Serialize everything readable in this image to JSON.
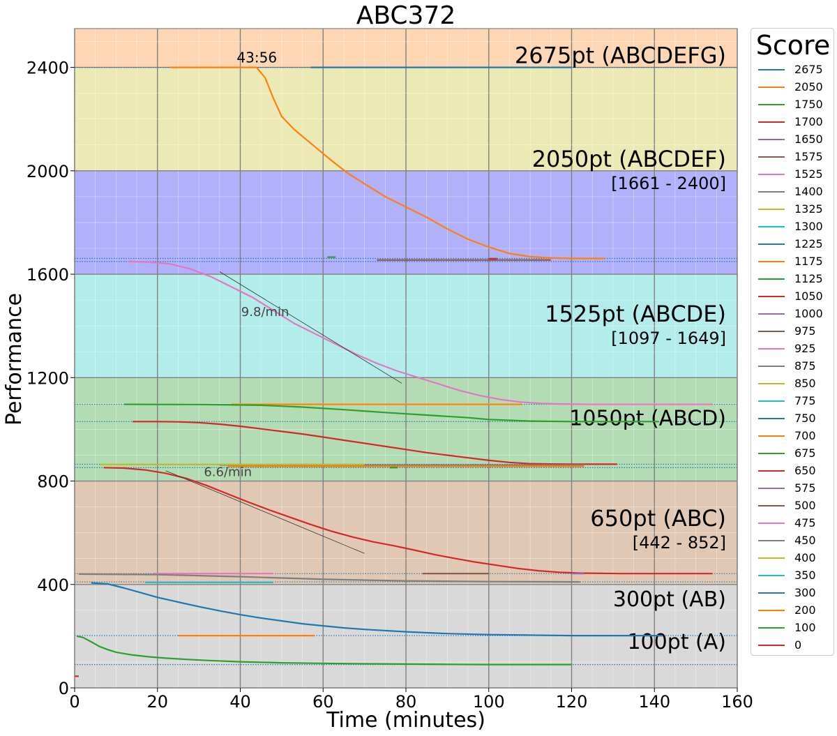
{
  "chart_data": {
    "type": "line",
    "title": "ABC372",
    "xlabel": "Time (minutes)",
    "ylabel": "Performance",
    "xlim": [
      0,
      160
    ],
    "ylim": [
      0,
      2550
    ],
    "x_ticks": [
      "0",
      "20",
      "40",
      "60",
      "80",
      "100",
      "120",
      "140",
      "160"
    ],
    "y_ticks": [
      "0",
      "400",
      "800",
      "1200",
      "1600",
      "2000",
      "2400"
    ],
    "grid": true,
    "legend_position": "right",
    "legend_title": "Score",
    "legend": [
      {
        "label": "2675",
        "color": "#1f77b4"
      },
      {
        "label": "2050",
        "color": "#ff7f0e"
      },
      {
        "label": "1750",
        "color": "#2ca02c"
      },
      {
        "label": "1700",
        "color": "#d62728"
      },
      {
        "label": "1650",
        "color": "#9467bd"
      },
      {
        "label": "1575",
        "color": "#8c564b"
      },
      {
        "label": "1525",
        "color": "#e377c2"
      },
      {
        "label": "1400",
        "color": "#7f7f7f"
      },
      {
        "label": "1325",
        "color": "#bcbd22"
      },
      {
        "label": "1300",
        "color": "#17becf"
      },
      {
        "label": "1225",
        "color": "#1f77b4"
      },
      {
        "label": "1175",
        "color": "#ff7f0e"
      },
      {
        "label": "1125",
        "color": "#2ca02c"
      },
      {
        "label": "1050",
        "color": "#d62728"
      },
      {
        "label": "1000",
        "color": "#9467bd"
      },
      {
        "label": "975",
        "color": "#8c564b"
      },
      {
        "label": "925",
        "color": "#e377c2"
      },
      {
        "label": "875",
        "color": "#7f7f7f"
      },
      {
        "label": "850",
        "color": "#bcbd22"
      },
      {
        "label": "775",
        "color": "#17becf"
      },
      {
        "label": "750",
        "color": "#1f77b4"
      },
      {
        "label": "700",
        "color": "#ff7f0e"
      },
      {
        "label": "675",
        "color": "#2ca02c"
      },
      {
        "label": "650",
        "color": "#d62728"
      },
      {
        "label": "575",
        "color": "#9467bd"
      },
      {
        "label": "500",
        "color": "#8c564b"
      },
      {
        "label": "475",
        "color": "#e377c2"
      },
      {
        "label": "450",
        "color": "#7f7f7f"
      },
      {
        "label": "400",
        "color": "#bcbd22"
      },
      {
        "label": "350",
        "color": "#17becf"
      },
      {
        "label": "300",
        "color": "#1f77b4"
      },
      {
        "label": "200",
        "color": "#ff7f0e"
      },
      {
        "label": "100",
        "color": "#2ca02c"
      },
      {
        "label": "0",
        "color": "#d62728"
      }
    ],
    "bands": [
      {
        "y0": 0,
        "y1": 400,
        "color": "#d9d9d9"
      },
      {
        "y0": 400,
        "y1": 800,
        "color": "#e0c8b4"
      },
      {
        "y0": 800,
        "y1": 1200,
        "color": "#b4dcb4"
      },
      {
        "y0": 1200,
        "y1": 1600,
        "color": "#b2eceb"
      },
      {
        "y0": 1600,
        "y1": 2000,
        "color": "#b0b0fb"
      },
      {
        "y0": 2000,
        "y1": 2400,
        "color": "#eceab4"
      },
      {
        "y0": 2400,
        "y1": 2550,
        "color": "#fdd7b4"
      }
    ],
    "band_labels": [
      {
        "name": "2675pt (ABCDEFG)",
        "range": "",
        "y": 2400
      },
      {
        "name": "2050pt (ABCDEF)",
        "range": "[1661 - 2400]",
        "y": 2000
      },
      {
        "name": "1525pt (ABCDE)",
        "range": "[1097 - 1649]",
        "y": 1400
      },
      {
        "name": "1050pt (ABCD)",
        "range": "",
        "y": 1000
      },
      {
        "name": "650pt (ABC)",
        "range": "[442 - 852]",
        "y": 610
      },
      {
        "name": "300pt (AB)",
        "range": "",
        "y": 300
      },
      {
        "name": "100pt (A)",
        "range": "",
        "y": 135
      }
    ],
    "dotted_levels": [
      2400,
      1661,
      1649,
      1097,
      1030,
      865,
      852,
      442,
      410,
      202,
      90
    ],
    "annotations": [
      {
        "text": "43:56",
        "x": 44,
        "y": 2400
      },
      {
        "text": "9.8/min",
        "x": 46,
        "y": 1420
      },
      {
        "text": "6.6/min",
        "x": 37,
        "y": 800
      }
    ],
    "slope_lines": [
      {
        "x": [
          35,
          79
        ],
        "y": [
          1610,
          1178
        ]
      },
      {
        "x": [
          22,
          70
        ],
        "y": [
          840,
          520
        ]
      }
    ],
    "series": [
      {
        "name": "2675",
        "color": "#1f77b4",
        "x": [
          57,
          120
        ],
        "y": [
          2400,
          2400
        ]
      },
      {
        "name": "2050",
        "color": "#ff7f0e",
        "x": [
          23,
          43.9,
          46,
          48,
          50,
          53,
          56,
          59,
          62,
          66,
          70,
          75,
          80,
          85,
          90,
          95,
          100,
          105,
          110,
          115,
          120,
          128
        ],
        "y": [
          2400,
          2400,
          2360,
          2280,
          2210,
          2160,
          2120,
          2080,
          2040,
          1990,
          1950,
          1900,
          1860,
          1820,
          1775,
          1735,
          1705,
          1680,
          1668,
          1663,
          1661,
          1661
        ]
      },
      {
        "name": "1750",
        "color": "#2ca02c",
        "x": [
          61,
          63
        ],
        "y": [
          1666,
          1666
        ]
      },
      {
        "name": "1700",
        "color": "#d62728",
        "x": [
          100,
          102
        ],
        "y": [
          1660,
          1660
        ]
      },
      {
        "name": "1575",
        "color": "#8c564b",
        "x": [
          73,
          115
        ],
        "y": [
          1655,
          1655
        ]
      },
      {
        "name": "1525",
        "color": "#e377c2",
        "x": [
          13,
          18,
          23,
          28,
          33,
          38,
          43,
          48,
          53,
          58,
          63,
          68,
          73,
          78,
          83,
          88,
          93,
          98,
          103,
          108,
          113,
          118,
          125,
          135,
          145,
          154
        ],
        "y": [
          1649,
          1647,
          1640,
          1620,
          1590,
          1550,
          1510,
          1460,
          1410,
          1370,
          1330,
          1290,
          1255,
          1225,
          1200,
          1175,
          1150,
          1130,
          1115,
          1105,
          1100,
          1098,
          1097,
          1097,
          1097,
          1097
        ]
      },
      {
        "name": "1175",
        "color": "#ff7f0e",
        "x": [
          38,
          108
        ],
        "y": [
          1097,
          1097
        ]
      },
      {
        "name": "1125",
        "color": "#2ca02c",
        "x": [
          12,
          30,
          45,
          55,
          65,
          75,
          85,
          95,
          100,
          110,
          120,
          130,
          141
        ],
        "y": [
          1097,
          1096,
          1093,
          1086,
          1076,
          1065,
          1055,
          1045,
          1038,
          1032,
          1030,
          1030,
          1030
        ]
      },
      {
        "name": "1050",
        "color": "#d62728",
        "x": [
          14,
          20,
          25,
          30,
          35,
          40,
          45,
          50,
          55,
          60,
          65,
          70,
          75,
          80,
          85,
          90,
          95,
          100,
          105,
          110,
          115,
          120,
          125,
          131
        ],
        "y": [
          1030,
          1030,
          1029,
          1026,
          1020,
          1012,
          1002,
          992,
          982,
          970,
          958,
          946,
          934,
          922,
          910,
          900,
          890,
          880,
          872,
          867,
          866,
          865,
          865,
          865
        ]
      },
      {
        "name": "925",
        "color": "#e377c2",
        "x": [
          53,
          56
        ],
        "y": [
          864,
          864
        ]
      },
      {
        "name": "875",
        "color": "#7f7f7f",
        "x": [
          35,
          123
        ],
        "y": [
          862,
          862
        ]
      },
      {
        "name": "850",
        "color": "#bcbd22",
        "x": [
          6,
          70
        ],
        "y": [
          864,
          864
        ]
      },
      {
        "name": "700",
        "color": "#ff7f0e",
        "x": [
          37,
          123
        ],
        "y": [
          857,
          857
        ]
      },
      {
        "name": "675",
        "color": "#2ca02c",
        "x": [
          76,
          78
        ],
        "y": [
          852,
          852
        ]
      },
      {
        "name": "650",
        "color": "#d62728",
        "x": [
          7,
          12,
          17,
          22,
          27,
          32,
          37,
          42,
          47,
          52,
          57,
          62,
          67,
          72,
          77,
          82,
          87,
          92,
          97,
          102,
          107,
          112,
          117,
          122,
          127,
          132,
          137,
          142,
          147,
          154
        ],
        "y": [
          852,
          850,
          843,
          830,
          810,
          782,
          750,
          718,
          688,
          660,
          632,
          606,
          584,
          565,
          550,
          533,
          515,
          500,
          486,
          474,
          462,
          453,
          447,
          444,
          443,
          442,
          442,
          442,
          442,
          442
        ]
      },
      {
        "name": "575",
        "color": "#9467bd",
        "x": [
          120,
          123
        ],
        "y": [
          442,
          442
        ]
      },
      {
        "name": "500",
        "color": "#8c564b",
        "x": [
          84,
          100
        ],
        "y": [
          442,
          442
        ]
      },
      {
        "name": "475",
        "color": "#e377c2",
        "x": [
          19,
          48
        ],
        "y": [
          442,
          442
        ]
      },
      {
        "name": "450",
        "color": "#7f7f7f",
        "x": [
          1,
          20,
          40,
          60,
          80,
          100,
          122
        ],
        "y": [
          440,
          438,
          430,
          420,
          414,
          411,
          410
        ]
      },
      {
        "name": "350",
        "color": "#17becf",
        "x": [
          17,
          48
        ],
        "y": [
          408,
          408
        ]
      },
      {
        "name": "300",
        "color": "#1f77b4",
        "x": [
          4,
          8,
          12,
          16,
          20,
          25,
          30,
          35,
          40,
          45,
          50,
          55,
          60,
          65,
          70,
          80,
          90,
          100,
          110,
          120,
          130,
          142
        ],
        "y": [
          406,
          402,
          386,
          368,
          350,
          332,
          314,
          298,
          283,
          270,
          259,
          248,
          240,
          232,
          226,
          217,
          210,
          206,
          204,
          202,
          202,
          202
        ]
      },
      {
        "name": "200",
        "color": "#ff7f0e",
        "x": [
          25,
          58
        ],
        "y": [
          202,
          202
        ]
      },
      {
        "name": "100",
        "color": "#2ca02c",
        "x": [
          0.5,
          2,
          4,
          6,
          8,
          10,
          14,
          18,
          22,
          27,
          32,
          40,
          50,
          60,
          70,
          80,
          90,
          100,
          110,
          120
        ],
        "y": [
          200,
          195,
          178,
          160,
          148,
          138,
          127,
          120,
          115,
          110,
          106,
          101,
          97,
          95,
          93,
          92,
          91,
          90,
          90,
          90
        ]
      },
      {
        "name": "0",
        "color": "#d62728",
        "x": [
          0,
          1
        ],
        "y": [
          45,
          45
        ]
      }
    ]
  }
}
